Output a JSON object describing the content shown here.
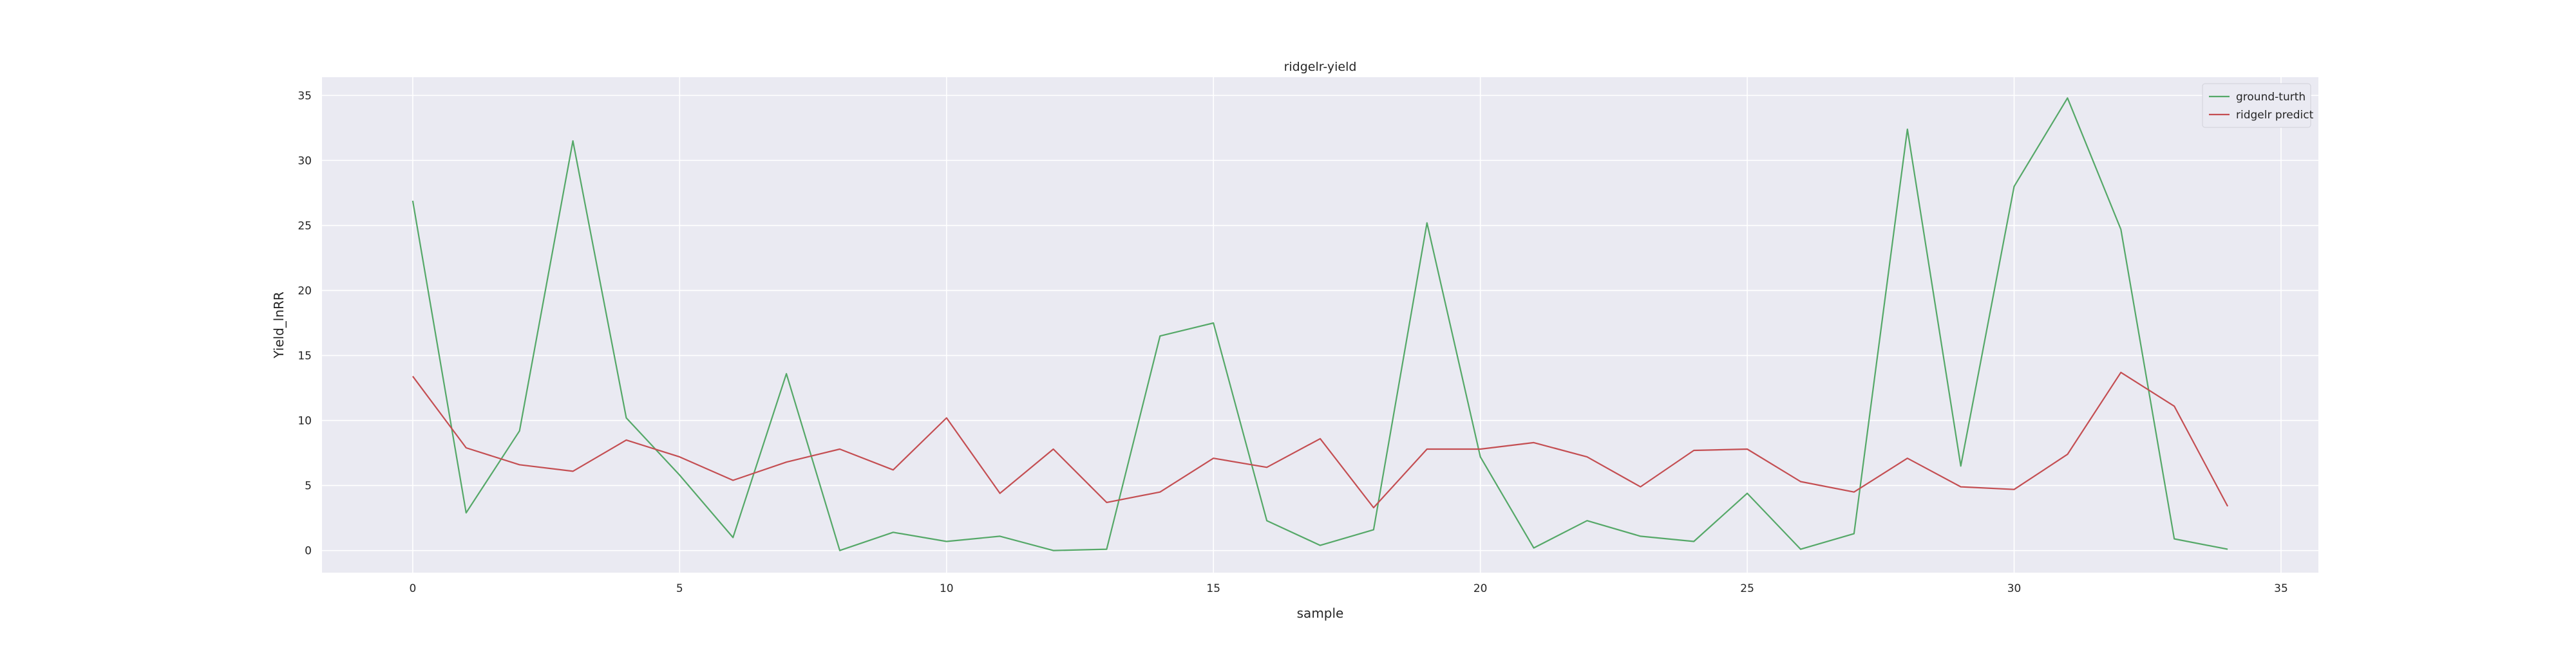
{
  "chart_data": {
    "type": "line",
    "title": "ridgelr-yield",
    "xlabel": "sample",
    "ylabel": "Yield_lnRR",
    "xlim": [
      -1.7,
      35.7
    ],
    "ylim": [
      -1.7,
      36.4
    ],
    "xticks": [
      0,
      5,
      10,
      15,
      20,
      25,
      30,
      35
    ],
    "yticks": [
      0,
      5,
      10,
      15,
      20,
      25,
      30,
      35
    ],
    "grid": true,
    "legend_position": "top-right",
    "x": [
      0,
      1,
      2,
      3,
      4,
      5,
      6,
      7,
      8,
      9,
      10,
      11,
      12,
      13,
      14,
      15,
      16,
      17,
      18,
      19,
      20,
      21,
      22,
      23,
      24,
      25,
      26,
      27,
      28,
      29,
      30,
      31,
      32,
      33,
      34
    ],
    "series": [
      {
        "name": "ground-turth",
        "color": "#55a868",
        "values": [
          26.9,
          2.9,
          9.2,
          31.5,
          10.2,
          5.8,
          1.0,
          13.6,
          0.0,
          1.4,
          0.7,
          1.1,
          0.0,
          0.1,
          16.5,
          17.5,
          2.3,
          0.4,
          1.6,
          25.2,
          7.2,
          0.2,
          2.3,
          1.1,
          0.7,
          4.4,
          0.1,
          1.3,
          32.4,
          6.5,
          28.0,
          34.8,
          24.7,
          0.9,
          0.1
        ]
      },
      {
        "name": "ridgelr predict",
        "color": "#c44e52",
        "values": [
          13.4,
          7.9,
          6.6,
          6.1,
          8.5,
          7.2,
          5.4,
          6.8,
          7.8,
          6.2,
          10.2,
          4.4,
          7.8,
          3.7,
          4.5,
          7.1,
          6.4,
          8.6,
          3.3,
          7.8,
          7.8,
          8.3,
          7.2,
          4.9,
          7.7,
          7.8,
          5.3,
          4.5,
          7.1,
          4.9,
          4.7,
          7.4,
          13.7,
          11.1,
          3.4
        ]
      }
    ],
    "style": {
      "plot_background": "#eaeaf2",
      "grid_color": "#ffffff"
    }
  }
}
